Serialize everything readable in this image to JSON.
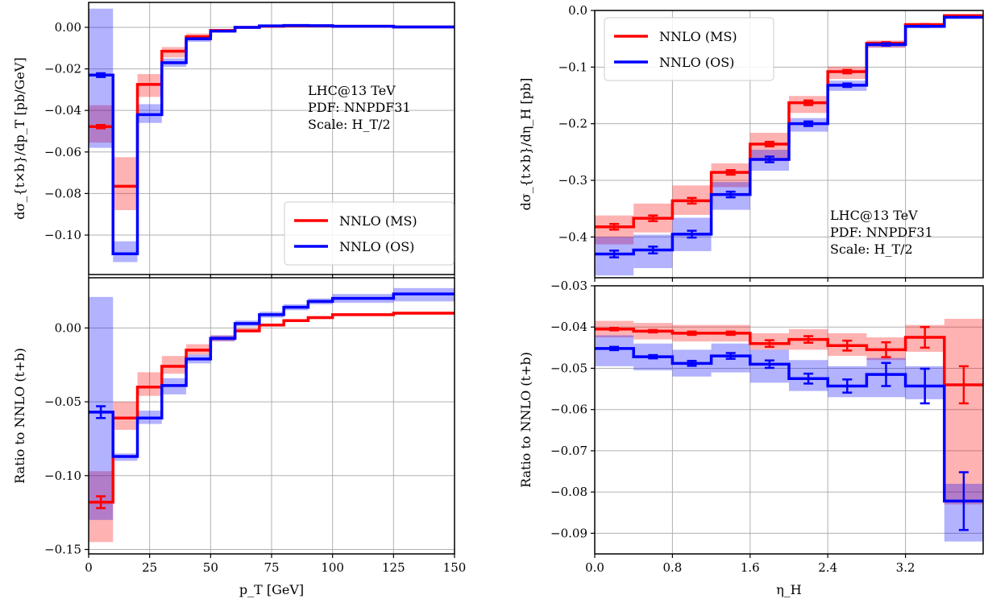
{
  "chart_data": [
    {
      "id": "pt_top",
      "type": "step",
      "xlabel": "",
      "ylabel": "dσ_{t×b}/dp_T [pb/GeV]",
      "xlim": [
        0,
        150
      ],
      "ylim": [
        -0.119,
        0.012
      ],
      "xticks": [
        0,
        25,
        50,
        75,
        100,
        125,
        150
      ],
      "xticklabels": [
        "",
        "",
        "",
        "",
        "",
        "",
        ""
      ],
      "yticks": [
        0.0,
        -0.02,
        -0.04,
        -0.06,
        -0.08,
        -0.1
      ],
      "yticklabels": [
        "0.00",
        "−0.02",
        "−0.04",
        "−0.06",
        "−0.08",
        "−0.10"
      ],
      "grid": true,
      "bin_edges": [
        0,
        10,
        20,
        30,
        40,
        50,
        60,
        70,
        80,
        90,
        100,
        125,
        150
      ],
      "series": [
        {
          "name": "NNLO (MS)",
          "color": "#ff0000",
          "values": [
            -0.0478,
            -0.0765,
            -0.0275,
            -0.0115,
            -0.0045,
            -0.0015,
            0.0,
            0.0005,
            0.0007,
            0.0007,
            0.0005,
            0.0002
          ],
          "band_low": [
            -0.0555,
            -0.088,
            -0.0335,
            -0.0145,
            -0.006,
            -0.0025,
            -0.0006,
            0.0002,
            0.0005,
            0.0005,
            0.0003,
            0.0001
          ],
          "band_high": [
            -0.0375,
            -0.0625,
            -0.0225,
            -0.0095,
            -0.003,
            -0.0008,
            0.0004,
            0.0008,
            0.001,
            0.001,
            0.0007,
            0.0003
          ],
          "err": [
            0.0008,
            0,
            0,
            0,
            0,
            0,
            0,
            0,
            0,
            0,
            0,
            0
          ]
        },
        {
          "name": "NNLO (OS)",
          "color": "#0000ff",
          "values": [
            -0.023,
            -0.109,
            -0.042,
            -0.017,
            -0.0055,
            -0.0018,
            0.0,
            0.0007,
            0.0009,
            0.0008,
            0.0005,
            0.0002
          ],
          "band_low": [
            -0.058,
            -0.113,
            -0.046,
            -0.019,
            -0.007,
            -0.0025,
            -0.0005,
            0.0004,
            0.0006,
            0.0006,
            0.0003,
            0.0001
          ],
          "band_high": [
            0.009,
            -0.103,
            -0.037,
            -0.015,
            -0.004,
            -0.001,
            0.0005,
            0.001,
            0.0012,
            0.001,
            0.0007,
            0.0003
          ],
          "err": [
            0.0009,
            0,
            0,
            0,
            0,
            0,
            0,
            0,
            0,
            0,
            0,
            0
          ]
        }
      ],
      "legend_position": "lower-right",
      "annotation": [
        "LHC@13 TeV",
        "PDF: NNPDF31",
        "Scale: H_T/2"
      ],
      "annotation_position": "upper-right"
    },
    {
      "id": "pt_bottom",
      "type": "step",
      "xlabel": "p_T [GeV]",
      "ylabel": "Ratio to NNLO (t+b)",
      "xlim": [
        0,
        150
      ],
      "ylim": [
        -0.153,
        0.034
      ],
      "xticks": [
        0,
        25,
        50,
        75,
        100,
        125,
        150
      ],
      "xticklabels": [
        "0",
        "25",
        "50",
        "75",
        "100",
        "125",
        "150"
      ],
      "yticks": [
        0.0,
        -0.05,
        -0.1,
        -0.15
      ],
      "yticklabels": [
        "0.00",
        "−0.05",
        "−0.10",
        "−0.15"
      ],
      "grid": true,
      "bin_edges": [
        0,
        10,
        20,
        30,
        40,
        50,
        60,
        70,
        80,
        90,
        100,
        125,
        150
      ],
      "series": [
        {
          "name": "NNLO (MS)",
          "color": "#ff0000",
          "values": [
            -0.118,
            -0.061,
            -0.04,
            -0.026,
            -0.015,
            -0.007,
            -0.002,
            0.002,
            0.005,
            0.007,
            0.009,
            0.01
          ],
          "band_low": [
            -0.145,
            -0.069,
            -0.046,
            -0.031,
            -0.018,
            -0.009,
            -0.003,
            0.001,
            0.004,
            0.006,
            0.008,
            0.009
          ],
          "band_high": [
            -0.097,
            -0.05,
            -0.03,
            -0.019,
            -0.011,
            -0.005,
            0.0,
            0.003,
            0.006,
            0.008,
            0.01,
            0.011
          ],
          "err": [
            0.004,
            0,
            0,
            0,
            0,
            0,
            0,
            0,
            0,
            0,
            0,
            0
          ]
        },
        {
          "name": "NNLO (OS)",
          "color": "#0000ff",
          "values": [
            -0.057,
            -0.087,
            -0.061,
            -0.039,
            -0.021,
            -0.007,
            0.003,
            0.009,
            0.014,
            0.018,
            0.02,
            0.023
          ],
          "band_low": [
            -0.13,
            -0.09,
            -0.065,
            -0.045,
            -0.024,
            -0.009,
            0.001,
            0.007,
            0.012,
            0.016,
            0.017,
            0.018
          ],
          "band_high": [
            0.021,
            -0.085,
            -0.056,
            -0.034,
            -0.018,
            -0.005,
            0.005,
            0.011,
            0.016,
            0.02,
            0.023,
            0.027
          ],
          "err": [
            0.004,
            0,
            0,
            0,
            0,
            0,
            0,
            0,
            0,
            0,
            0,
            0
          ]
        }
      ]
    },
    {
      "id": "eta_top",
      "type": "step",
      "xlabel": "",
      "ylabel": "dσ_{t×b}/dη_H [pb]",
      "xlim": [
        0,
        4.0
      ],
      "ylim": [
        -0.472,
        0.0
      ],
      "xticks": [
        0,
        0.8,
        1.6,
        2.4,
        3.2
      ],
      "xticklabels": [
        "",
        "",
        "",
        "",
        ""
      ],
      "yticks": [
        0.0,
        -0.1,
        -0.2,
        -0.3,
        -0.4
      ],
      "yticklabels": [
        "0.0",
        "−0.1",
        "−0.2",
        "−0.3",
        "−0.4"
      ],
      "grid": true,
      "bin_edges": [
        0,
        0.4,
        0.8,
        1.2,
        1.6,
        2.0,
        2.4,
        2.8,
        3.2,
        3.6,
        4.0
      ],
      "series": [
        {
          "name": "NNLO (MS)",
          "color": "#ff0000",
          "values": [
            -0.382,
            -0.367,
            -0.336,
            -0.286,
            -0.236,
            -0.163,
            -0.108,
            -0.058,
            -0.025,
            -0.009
          ],
          "band_low": [
            -0.413,
            -0.392,
            -0.361,
            -0.312,
            -0.266,
            -0.181,
            -0.121,
            -0.066,
            -0.029,
            -0.011
          ],
          "band_high": [
            -0.362,
            -0.341,
            -0.309,
            -0.27,
            -0.216,
            -0.151,
            -0.099,
            -0.053,
            -0.022,
            -0.008
          ],
          "err": [
            0.005,
            0.005,
            0.005,
            0.004,
            0.004,
            0.004,
            0.003,
            0.002,
            0.001,
            0.0
          ]
        },
        {
          "name": "NNLO (OS)",
          "color": "#0000ff",
          "values": [
            -0.43,
            -0.423,
            -0.395,
            -0.325,
            -0.263,
            -0.2,
            -0.132,
            -0.06,
            -0.028,
            -0.012
          ],
          "band_low": [
            -0.468,
            -0.455,
            -0.425,
            -0.352,
            -0.283,
            -0.214,
            -0.142,
            -0.065,
            -0.031,
            -0.014
          ],
          "band_high": [
            -0.4,
            -0.396,
            -0.366,
            -0.303,
            -0.246,
            -0.19,
            -0.124,
            -0.055,
            -0.025,
            -0.01
          ],
          "err": [
            0.006,
            0.006,
            0.006,
            0.005,
            0.005,
            0.004,
            0.003,
            0.002,
            0.001,
            0.0
          ]
        }
      ],
      "legend_position": "upper-left",
      "annotation": [
        "LHC@13 TeV",
        "PDF: NNPDF31",
        "Scale: H_T/2"
      ],
      "annotation_position": "lower-right"
    },
    {
      "id": "eta_bottom",
      "type": "step",
      "xlabel": "η_H",
      "ylabel": "Ratio to NNLO (t+b)",
      "xlim": [
        0,
        4.0
      ],
      "ylim": [
        -0.095,
        -0.03
      ],
      "xticks": [
        0,
        0.8,
        1.6,
        2.4,
        3.2
      ],
      "xticklabels": [
        "0.0",
        "0.8",
        "1.6",
        "2.4",
        "3.2"
      ],
      "yticks": [
        -0.03,
        -0.04,
        -0.05,
        -0.06,
        -0.07,
        -0.08,
        -0.09
      ],
      "yticklabels": [
        "−0.03",
        "−0.04",
        "−0.05",
        "−0.06",
        "−0.07",
        "−0.08",
        "−0.09"
      ],
      "grid": true,
      "bin_edges": [
        0,
        0.4,
        0.8,
        1.2,
        1.6,
        2.0,
        2.4,
        2.8,
        3.2,
        3.6,
        4.0
      ],
      "series": [
        {
          "name": "NNLO (MS)",
          "color": "#ff0000",
          "values": [
            -0.0405,
            -0.041,
            -0.0415,
            -0.0415,
            -0.044,
            -0.043,
            -0.0445,
            -0.0455,
            -0.0425,
            -0.054
          ],
          "band_low": [
            -0.0425,
            -0.043,
            -0.0435,
            -0.0435,
            -0.0455,
            -0.0455,
            -0.047,
            -0.048,
            -0.046,
            -0.083
          ],
          "band_high": [
            -0.0385,
            -0.039,
            -0.0395,
            -0.0395,
            -0.0415,
            -0.0405,
            -0.0415,
            -0.0425,
            -0.0395,
            -0.038
          ],
          "err": [
            0.0003,
            0.0003,
            0.0004,
            0.0004,
            0.0008,
            0.0008,
            0.0012,
            0.0018,
            0.0025,
            0.0045
          ]
        },
        {
          "name": "NNLO (OS)",
          "color": "#0000ff",
          "values": [
            -0.0452,
            -0.0472,
            -0.0488,
            -0.047,
            -0.049,
            -0.0525,
            -0.0543,
            -0.0515,
            -0.0543,
            -0.0822
          ],
          "band_low": [
            -0.0495,
            -0.0505,
            -0.052,
            -0.051,
            -0.0535,
            -0.0555,
            -0.057,
            -0.057,
            -0.0575,
            -0.092
          ],
          "band_high": [
            -0.042,
            -0.044,
            -0.0455,
            -0.044,
            -0.0455,
            -0.048,
            -0.0495,
            -0.0475,
            -0.0495,
            -0.078
          ],
          "err": [
            0.0004,
            0.0004,
            0.0006,
            0.0007,
            0.0009,
            0.0012,
            0.0016,
            0.0028,
            0.0042,
            0.007
          ]
        }
      ]
    }
  ],
  "legend": {
    "entries": [
      {
        "label": "NNLO (MS)",
        "color": "#ff0000"
      },
      {
        "label": "NNLO (OS)",
        "color": "#0000ff"
      }
    ]
  }
}
